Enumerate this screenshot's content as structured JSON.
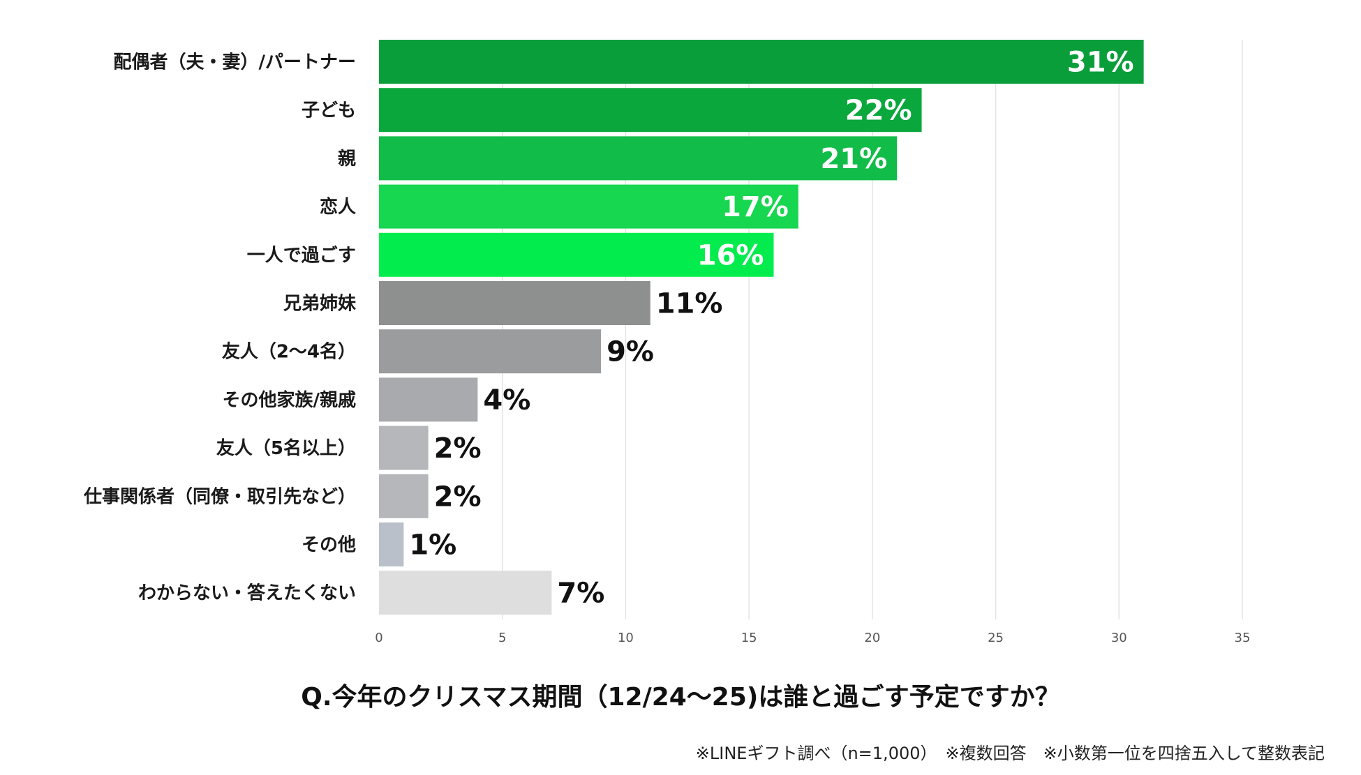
{
  "chart_data": {
    "type": "bar",
    "orientation": "horizontal",
    "title": "Q.今年のクリスマス期間（12/24〜25)は誰と過ごす予定ですか？",
    "note": "※LINEギフト調べ（n=1,000）　※複数回答　※小数第一位を四捨五入して整数表記",
    "categories": [
      "配偶者（夫・妻）/パートナー",
      "子ども",
      "親",
      "恋人",
      "一人で過ごす",
      "兄弟姉妹",
      "友人（2〜4名）",
      "その他家族/親戚",
      "友人（5名以上）",
      "仕事関係者（同僚・取引先など）",
      "その他",
      "わからない・答えたくない"
    ],
    "values": [
      31,
      22,
      21,
      17,
      16,
      11,
      9,
      4,
      2,
      2,
      1,
      7
    ],
    "value_labels": [
      "31%",
      "22%",
      "21%",
      "17%",
      "16%",
      "11%",
      "9%",
      "4%",
      "2%",
      "2%",
      "1%",
      "7%"
    ],
    "colors": [
      "#0a9e3a",
      "#0aa83c",
      "#11bd48",
      "#17d650",
      "#03ec4d",
      "#8e8f8f",
      "#9b9c9d",
      "#a9aaad",
      "#b5b7bb",
      "#b5b7bb",
      "#b9c0c9",
      "#dedede"
    ],
    "xlim": [
      0,
      35
    ],
    "xticks": [
      0,
      5,
      10,
      15,
      20,
      25,
      30,
      35
    ],
    "xtick_labels": [
      "0",
      "5",
      "10",
      "15",
      "20",
      "25",
      "30",
      "35"
    ],
    "grid": true,
    "xlabel": "",
    "ylabel": ""
  }
}
